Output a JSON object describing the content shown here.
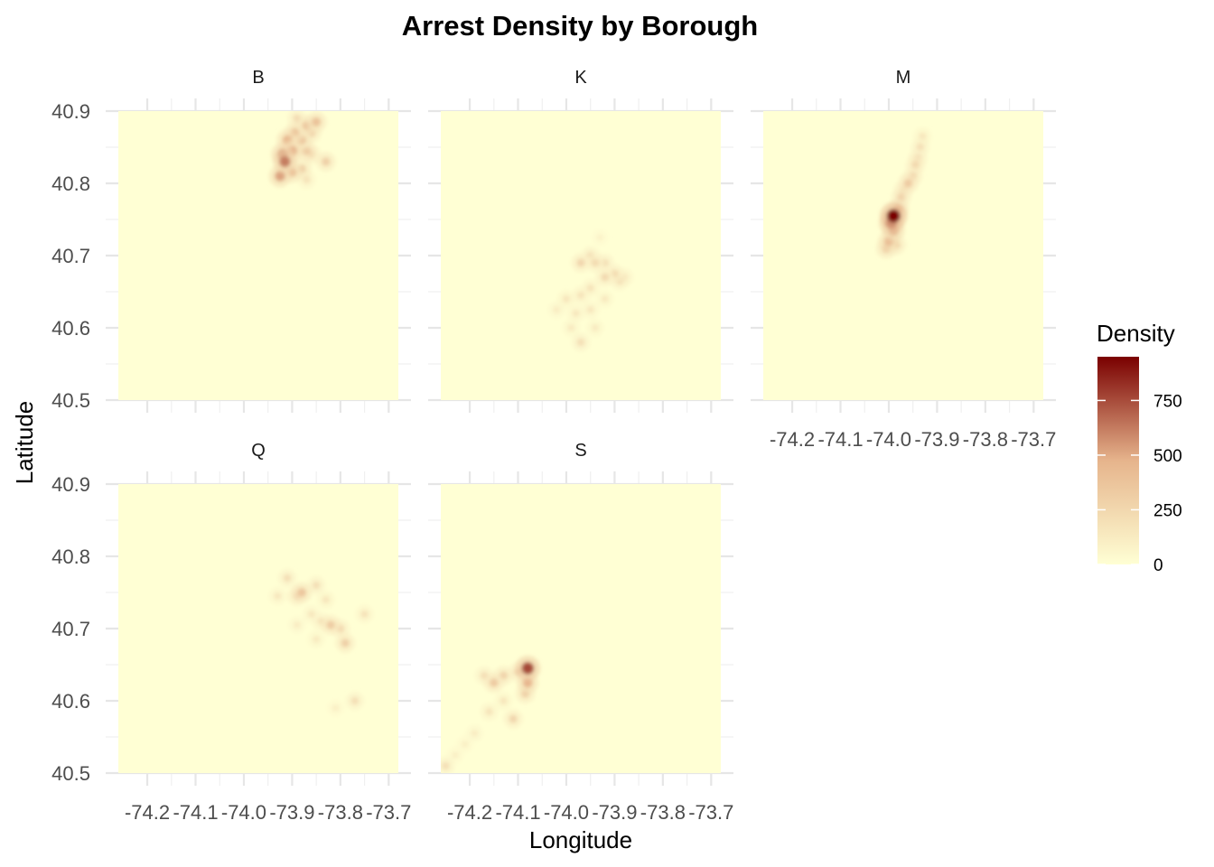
{
  "chart_data": {
    "type": "heatmap",
    "title": "Arrest Density by Borough",
    "xlabel": "Longitude",
    "ylabel": "Latitude",
    "xlim": [
      -74.26,
      -73.68
    ],
    "ylim": [
      0.5,
      0.9
    ],
    "y_offset_base": 40.0,
    "x_ticks": [
      -74.2,
      -74.1,
      -74.0,
      -73.9,
      -73.8,
      -73.7
    ],
    "x_tick_labels": [
      "-74.2",
      "-74.1",
      "-74.0",
      "-73.9",
      "-73.8",
      "-73.7"
    ],
    "y_ticks": [
      40.5,
      40.6,
      40.7,
      40.8,
      40.9
    ],
    "y_tick_labels": [
      "40.5",
      "40.6",
      "40.7",
      "40.8",
      "40.9"
    ],
    "grid": true,
    "background_color": "#FFFFD4",
    "colors": {
      "low": "#FFFFD4",
      "mid": "#E6B48C",
      "high": "#7A0000"
    },
    "legend": {
      "title": "Density",
      "placement": "right",
      "range": [
        0,
        950
      ],
      "ticks": [
        0,
        250,
        500,
        750
      ],
      "tick_labels": [
        "0",
        "250",
        "500",
        "750"
      ]
    },
    "facets": [
      {
        "label": "B",
        "hotspots": [
          {
            "lon": -73.92,
            "lat": 40.84,
            "density": 560
          },
          {
            "lon": -73.915,
            "lat": 40.83,
            "density": 620
          },
          {
            "lon": -73.91,
            "lat": 40.86,
            "density": 440
          },
          {
            "lon": -73.9,
            "lat": 40.845,
            "density": 480
          },
          {
            "lon": -73.895,
            "lat": 40.87,
            "density": 380
          },
          {
            "lon": -73.88,
            "lat": 40.86,
            "density": 360
          },
          {
            "lon": -73.87,
            "lat": 40.845,
            "density": 320
          },
          {
            "lon": -73.87,
            "lat": 40.88,
            "density": 360
          },
          {
            "lon": -73.86,
            "lat": 40.87,
            "density": 300
          },
          {
            "lon": -73.85,
            "lat": 40.885,
            "density": 380
          },
          {
            "lon": -73.86,
            "lat": 40.84,
            "density": 250
          },
          {
            "lon": -73.83,
            "lat": 40.83,
            "density": 300
          },
          {
            "lon": -73.925,
            "lat": 40.81,
            "density": 520
          },
          {
            "lon": -73.9,
            "lat": 40.815,
            "density": 380
          },
          {
            "lon": -73.88,
            "lat": 40.82,
            "density": 300
          },
          {
            "lon": -73.87,
            "lat": 40.805,
            "density": 180
          },
          {
            "lon": -73.89,
            "lat": 40.89,
            "density": 220
          }
        ]
      },
      {
        "label": "K",
        "hotspots": [
          {
            "lon": -73.97,
            "lat": 40.69,
            "density": 260
          },
          {
            "lon": -73.95,
            "lat": 40.7,
            "density": 200
          },
          {
            "lon": -73.94,
            "lat": 40.69,
            "density": 230
          },
          {
            "lon": -73.92,
            "lat": 40.69,
            "density": 200
          },
          {
            "lon": -73.92,
            "lat": 40.67,
            "density": 240
          },
          {
            "lon": -73.9,
            "lat": 40.675,
            "density": 230
          },
          {
            "lon": -73.89,
            "lat": 40.665,
            "density": 200
          },
          {
            "lon": -73.88,
            "lat": 40.67,
            "density": 180
          },
          {
            "lon": -73.95,
            "lat": 40.655,
            "density": 170
          },
          {
            "lon": -73.97,
            "lat": 40.645,
            "density": 170
          },
          {
            "lon": -74.0,
            "lat": 40.64,
            "density": 160
          },
          {
            "lon": -73.98,
            "lat": 40.62,
            "density": 150
          },
          {
            "lon": -73.95,
            "lat": 40.625,
            "density": 150
          },
          {
            "lon": -73.92,
            "lat": 40.64,
            "density": 140
          },
          {
            "lon": -73.94,
            "lat": 40.6,
            "density": 130
          },
          {
            "lon": -73.97,
            "lat": 40.58,
            "density": 200
          },
          {
            "lon": -73.99,
            "lat": 40.6,
            "density": 130
          },
          {
            "lon": -74.02,
            "lat": 40.625,
            "density": 120
          },
          {
            "lon": -73.93,
            "lat": 40.725,
            "density": 80
          }
        ]
      },
      {
        "label": "M",
        "hotspots": [
          {
            "lon": -73.99,
            "lat": 40.755,
            "density": 950
          },
          {
            "lon": -73.995,
            "lat": 40.745,
            "density": 700
          },
          {
            "lon": -73.99,
            "lat": 40.735,
            "density": 520
          },
          {
            "lon": -74.0,
            "lat": 40.72,
            "density": 420
          },
          {
            "lon": -74.005,
            "lat": 40.71,
            "density": 360
          },
          {
            "lon": -73.985,
            "lat": 40.715,
            "density": 300
          },
          {
            "lon": -73.98,
            "lat": 40.765,
            "density": 380
          },
          {
            "lon": -73.975,
            "lat": 40.78,
            "density": 280
          },
          {
            "lon": -73.97,
            "lat": 40.79,
            "density": 250
          },
          {
            "lon": -73.96,
            "lat": 40.8,
            "density": 330
          },
          {
            "lon": -73.95,
            "lat": 40.81,
            "density": 260
          },
          {
            "lon": -73.945,
            "lat": 40.825,
            "density": 250
          },
          {
            "lon": -73.94,
            "lat": 40.835,
            "density": 220
          },
          {
            "lon": -73.935,
            "lat": 40.85,
            "density": 200
          },
          {
            "lon": -73.93,
            "lat": 40.865,
            "density": 160
          }
        ]
      },
      {
        "label": "Q",
        "hotspots": [
          {
            "lon": -73.88,
            "lat": 40.75,
            "density": 360
          },
          {
            "lon": -73.89,
            "lat": 40.745,
            "density": 260
          },
          {
            "lon": -73.91,
            "lat": 40.77,
            "density": 200
          },
          {
            "lon": -73.93,
            "lat": 40.745,
            "density": 150
          },
          {
            "lon": -73.85,
            "lat": 40.76,
            "density": 200
          },
          {
            "lon": -73.83,
            "lat": 40.74,
            "density": 160
          },
          {
            "lon": -73.82,
            "lat": 40.705,
            "density": 320
          },
          {
            "lon": -73.8,
            "lat": 40.7,
            "density": 240
          },
          {
            "lon": -73.79,
            "lat": 40.68,
            "density": 300
          },
          {
            "lon": -73.84,
            "lat": 40.71,
            "density": 170
          },
          {
            "lon": -73.86,
            "lat": 40.72,
            "density": 150
          },
          {
            "lon": -73.89,
            "lat": 40.705,
            "density": 120
          },
          {
            "lon": -73.85,
            "lat": 40.685,
            "density": 130
          },
          {
            "lon": -73.75,
            "lat": 40.72,
            "density": 180
          },
          {
            "lon": -73.77,
            "lat": 40.6,
            "density": 200
          },
          {
            "lon": -73.81,
            "lat": 40.59,
            "density": 100
          }
        ]
      },
      {
        "label": "S",
        "hotspots": [
          {
            "lon": -74.08,
            "lat": 40.645,
            "density": 760
          },
          {
            "lon": -74.08,
            "lat": 40.625,
            "density": 460
          },
          {
            "lon": -74.085,
            "lat": 40.61,
            "density": 300
          },
          {
            "lon": -74.1,
            "lat": 40.64,
            "density": 260
          },
          {
            "lon": -74.13,
            "lat": 40.635,
            "density": 280
          },
          {
            "lon": -74.15,
            "lat": 40.625,
            "density": 330
          },
          {
            "lon": -74.17,
            "lat": 40.635,
            "density": 200
          },
          {
            "lon": -74.11,
            "lat": 40.575,
            "density": 260
          },
          {
            "lon": -74.16,
            "lat": 40.585,
            "density": 170
          },
          {
            "lon": -74.19,
            "lat": 40.555,
            "density": 120
          },
          {
            "lon": -74.21,
            "lat": 40.54,
            "density": 100
          },
          {
            "lon": -74.23,
            "lat": 40.525,
            "density": 100
          },
          {
            "lon": -74.25,
            "lat": 40.51,
            "density": 200
          },
          {
            "lon": -74.13,
            "lat": 40.6,
            "density": 160
          }
        ]
      }
    ]
  }
}
